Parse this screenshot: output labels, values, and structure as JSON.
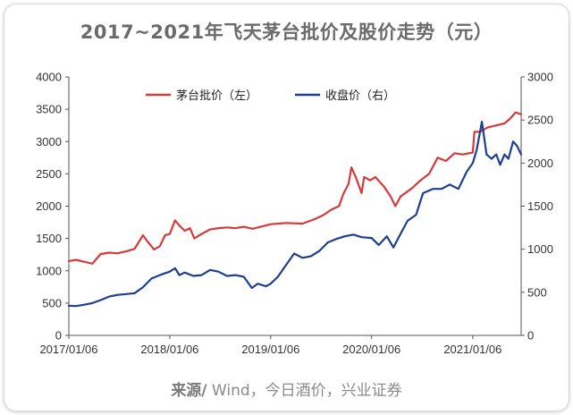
{
  "title": "2017~2021年飞天茅台批价及股价走势（元）",
  "source": {
    "label": "来源/",
    "text": " Wind，今日酒价，兴业证券"
  },
  "chart_data": {
    "type": "line",
    "title": "2017~2021年飞天茅台批价及股价走势（元）",
    "x_ticks": [
      "2017/01/06",
      "2018/01/06",
      "2019/01/06",
      "2020/01/06",
      "2021/01/06"
    ],
    "x_range": [
      "2017/01/06",
      "2021/06/30"
    ],
    "y_left": {
      "range": [
        0,
        4000
      ],
      "ticks": [
        0,
        500,
        1000,
        1500,
        2000,
        2500,
        3000,
        3500,
        4000
      ]
    },
    "y_right": {
      "range": [
        0,
        3000
      ],
      "ticks": [
        0,
        500,
        1000,
        1500,
        2000,
        2500,
        3000
      ]
    },
    "legend_position": "top-center",
    "grid": false,
    "series": [
      {
        "name": "茅台批价（左）",
        "axis": "left",
        "color": "#d63a3a",
        "points": [
          [
            "2017/01/06",
            1150
          ],
          [
            "2017/02/01",
            1170
          ],
          [
            "2017/03/01",
            1140
          ],
          [
            "2017/04/01",
            1110
          ],
          [
            "2017/05/01",
            1260
          ],
          [
            "2017/06/01",
            1280
          ],
          [
            "2017/07/01",
            1270
          ],
          [
            "2017/08/01",
            1300
          ],
          [
            "2017/09/01",
            1340
          ],
          [
            "2017/10/01",
            1550
          ],
          [
            "2017/10/20",
            1440
          ],
          [
            "2017/11/10",
            1330
          ],
          [
            "2017/12/01",
            1380
          ],
          [
            "2017/12/20",
            1550
          ],
          [
            "2018/01/06",
            1570
          ],
          [
            "2018/01/25",
            1780
          ],
          [
            "2018/02/10",
            1700
          ],
          [
            "2018/03/01",
            1620
          ],
          [
            "2018/03/20",
            1660
          ],
          [
            "2018/04/05",
            1500
          ],
          [
            "2018/05/01",
            1570
          ],
          [
            "2018/06/01",
            1640
          ],
          [
            "2018/07/01",
            1660
          ],
          [
            "2018/08/01",
            1670
          ],
          [
            "2018/09/01",
            1660
          ],
          [
            "2018/10/01",
            1680
          ],
          [
            "2018/11/01",
            1650
          ],
          [
            "2018/12/01",
            1680
          ],
          [
            "2019/01/06",
            1720
          ],
          [
            "2019/03/01",
            1740
          ],
          [
            "2019/05/01",
            1730
          ],
          [
            "2019/06/15",
            1800
          ],
          [
            "2019/07/15",
            1860
          ],
          [
            "2019/08/15",
            1950
          ],
          [
            "2019/09/10",
            2000
          ],
          [
            "2019/09/25",
            2180
          ],
          [
            "2019/10/15",
            2350
          ],
          [
            "2019/10/25",
            2600
          ],
          [
            "2019/11/10",
            2450
          ],
          [
            "2019/12/01",
            2200
          ],
          [
            "2019/12/10",
            2450
          ],
          [
            "2020/01/01",
            2400
          ],
          [
            "2020/01/20",
            2450
          ],
          [
            "2020/02/20",
            2300
          ],
          [
            "2020/03/15",
            2150
          ],
          [
            "2020/04/01",
            2000
          ],
          [
            "2020/04/20",
            2150
          ],
          [
            "2020/06/01",
            2280
          ],
          [
            "2020/07/01",
            2400
          ],
          [
            "2020/08/01",
            2500
          ],
          [
            "2020/09/01",
            2750
          ],
          [
            "2020/10/01",
            2700
          ],
          [
            "2020/11/01",
            2820
          ],
          [
            "2020/12/01",
            2800
          ],
          [
            "2021/01/06",
            2830
          ],
          [
            "2021/01/12",
            3150
          ],
          [
            "2021/02/01",
            3150
          ],
          [
            "2021/03/01",
            3220
          ],
          [
            "2021/04/01",
            3250
          ],
          [
            "2021/05/01",
            3280
          ],
          [
            "2021/05/20",
            3350
          ],
          [
            "2021/06/10",
            3450
          ],
          [
            "2021/06/30",
            3420
          ]
        ]
      },
      {
        "name": "收盘价（右）",
        "axis": "right",
        "color": "#1e3f8f",
        "points": [
          [
            "2017/01/06",
            345
          ],
          [
            "2017/02/01",
            340
          ],
          [
            "2017/03/01",
            355
          ],
          [
            "2017/04/01",
            375
          ],
          [
            "2017/05/01",
            410
          ],
          [
            "2017/06/01",
            450
          ],
          [
            "2017/07/01",
            470
          ],
          [
            "2017/08/01",
            480
          ],
          [
            "2017/09/01",
            490
          ],
          [
            "2017/10/01",
            560
          ],
          [
            "2017/11/01",
            660
          ],
          [
            "2017/12/01",
            700
          ],
          [
            "2018/01/06",
            740
          ],
          [
            "2018/01/25",
            780
          ],
          [
            "2018/02/10",
            700
          ],
          [
            "2018/03/01",
            730
          ],
          [
            "2018/04/01",
            690
          ],
          [
            "2018/05/01",
            700
          ],
          [
            "2018/06/01",
            760
          ],
          [
            "2018/07/01",
            740
          ],
          [
            "2018/08/01",
            690
          ],
          [
            "2018/09/01",
            700
          ],
          [
            "2018/10/01",
            680
          ],
          [
            "2018/10/30",
            550
          ],
          [
            "2018/11/20",
            600
          ],
          [
            "2018/12/20",
            570
          ],
          [
            "2019/01/06",
            600
          ],
          [
            "2019/02/01",
            680
          ],
          [
            "2019/03/01",
            810
          ],
          [
            "2019/04/01",
            950
          ],
          [
            "2019/05/01",
            900
          ],
          [
            "2019/06/01",
            920
          ],
          [
            "2019/07/01",
            980
          ],
          [
            "2019/08/01",
            1080
          ],
          [
            "2019/09/01",
            1120
          ],
          [
            "2019/10/01",
            1150
          ],
          [
            "2019/11/01",
            1170
          ],
          [
            "2019/12/01",
            1140
          ],
          [
            "2020/01/06",
            1130
          ],
          [
            "2020/02/01",
            1050
          ],
          [
            "2020/03/01",
            1150
          ],
          [
            "2020/03/25",
            1020
          ],
          [
            "2020/04/15",
            1150
          ],
          [
            "2020/05/15",
            1330
          ],
          [
            "2020/06/15",
            1400
          ],
          [
            "2020/07/10",
            1650
          ],
          [
            "2020/08/15",
            1700
          ],
          [
            "2020/09/15",
            1700
          ],
          [
            "2020/10/15",
            1750
          ],
          [
            "2020/11/15",
            1700
          ],
          [
            "2020/12/15",
            1900
          ],
          [
            "2021/01/06",
            2000
          ],
          [
            "2021/01/20",
            2150
          ],
          [
            "2021/02/08",
            2480
          ],
          [
            "2021/02/25",
            2100
          ],
          [
            "2021/03/15",
            2050
          ],
          [
            "2021/04/01",
            2100
          ],
          [
            "2021/04/15",
            1980
          ],
          [
            "2021/05/01",
            2100
          ],
          [
            "2021/05/15",
            2050
          ],
          [
            "2021/06/01",
            2250
          ],
          [
            "2021/06/15",
            2200
          ],
          [
            "2021/06/30",
            2100
          ]
        ]
      }
    ]
  }
}
